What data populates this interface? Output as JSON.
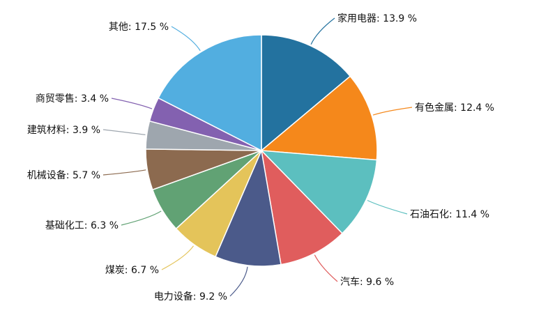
{
  "chart_data": {
    "type": "pie",
    "unit": "%",
    "start": "top",
    "direction": "clockwise",
    "slices": [
      {
        "label": "家用电器",
        "value": 13.9,
        "value_text": "13.9 %",
        "color": "#23729f"
      },
      {
        "label": "有色金属",
        "value": 12.4,
        "value_text": "12.4 %",
        "color": "#f5881b"
      },
      {
        "label": "石油石化",
        "value": 11.4,
        "value_text": "11.4 %",
        "color": "#5cbfbf"
      },
      {
        "label": "汽车",
        "value": 9.6,
        "value_text": "9.6 %",
        "color": "#e05d5d"
      },
      {
        "label": "电力设备",
        "value": 9.2,
        "value_text": "9.2 %",
        "color": "#4b5a8a"
      },
      {
        "label": "煤炭",
        "value": 6.7,
        "value_text": "6.7 %",
        "color": "#e4c45a"
      },
      {
        "label": "基础化工",
        "value": 6.3,
        "value_text": "6.3 %",
        "color": "#61a274"
      },
      {
        "label": "机械设备",
        "value": 5.7,
        "value_text": "5.7 %",
        "color": "#8c6a4f"
      },
      {
        "label": "建筑材料",
        "value": 3.9,
        "value_text": "3.9 %",
        "color": "#9ea6ae"
      },
      {
        "label": "商贸零售",
        "value": 3.4,
        "value_text": "3.4 %",
        "color": "#8361b0"
      },
      {
        "label": "其他",
        "value": 17.5,
        "value_text": "17.5 %",
        "color": "#52aee0"
      }
    ]
  }
}
